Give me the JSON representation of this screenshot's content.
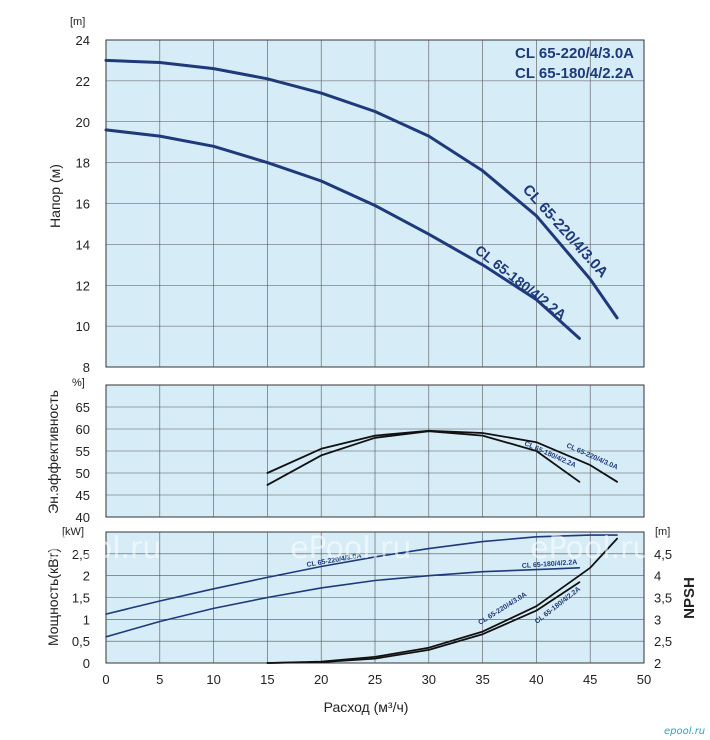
{
  "chart_data": [
    {
      "type": "line",
      "ylabel": "Напор (м)",
      "yunit": "[m]",
      "xlim": [
        0,
        50
      ],
      "ylim": [
        8,
        24
      ],
      "yticks": [
        8,
        10,
        12,
        14,
        16,
        18,
        20,
        22,
        24
      ],
      "grid": true,
      "legend": [
        "CL 65-220/4/3.0A",
        "CL 65-180/4/2.2A"
      ],
      "series": [
        {
          "name": "CL 65-220/4/3.0A",
          "x": [
            0,
            5,
            10,
            15,
            20,
            25,
            30,
            35,
            40,
            45,
            47.5
          ],
          "y": [
            23.0,
            22.9,
            22.6,
            22.1,
            21.4,
            20.5,
            19.3,
            17.6,
            15.4,
            12.3,
            10.4
          ]
        },
        {
          "name": "CL 65-180/4/2.2A",
          "x": [
            0,
            5,
            10,
            15,
            20,
            25,
            30,
            35,
            40,
            44
          ],
          "y": [
            19.6,
            19.3,
            18.8,
            18.0,
            17.1,
            15.9,
            14.5,
            13.0,
            11.3,
            9.4
          ]
        }
      ]
    },
    {
      "type": "line",
      "ylabel": "Эн.эффективность",
      "yunit": "%]",
      "xlim": [
        0,
        50
      ],
      "ylim": [
        40,
        70
      ],
      "yticks": [
        40,
        45,
        50,
        55,
        60,
        65
      ],
      "grid": true,
      "series": [
        {
          "name": "CL 65-220/4/3.0A",
          "x": [
            15,
            20,
            25,
            30,
            35,
            40,
            45,
            47.5
          ],
          "y": [
            50.0,
            55.5,
            58.5,
            59.6,
            59.1,
            57.0,
            51.8,
            48.0
          ]
        },
        {
          "name": "CL 65-180/4/2.2A",
          "x": [
            15,
            20,
            25,
            30,
            35,
            40,
            44
          ],
          "y": [
            47.3,
            54.0,
            58.0,
            59.5,
            58.5,
            55.0,
            48.0
          ]
        }
      ]
    },
    {
      "type": "line",
      "ylabel": "Мощность(кВт)",
      "yunit": "[kW]",
      "y2label": "NPSH",
      "y2unit": "[m]",
      "xlabel": "Расход (м³/ч)",
      "xlim": [
        0,
        50
      ],
      "xticks": [
        0,
        5,
        10,
        15,
        20,
        25,
        30,
        35,
        40,
        45,
        50
      ],
      "ylim": [
        0,
        3
      ],
      "yticks": [
        0,
        0.5,
        1,
        1.5,
        2,
        2.5
      ],
      "ytick_labels": [
        "0",
        "0,5",
        "1",
        "1,5",
        "2",
        "2,5"
      ],
      "y2lim": [
        2,
        5
      ],
      "y2ticks": [
        2,
        2.5,
        3,
        3.5,
        4,
        4.5
      ],
      "y2tick_labels": [
        "2",
        "2,5",
        "3",
        "3,5",
        "4",
        "4,5"
      ],
      "grid": true,
      "series": [
        {
          "name": "CL 65-220/4/3.0A",
          "axis": "power",
          "x": [
            0,
            5,
            10,
            15,
            20,
            25,
            30,
            35,
            40,
            45,
            47.5
          ],
          "y": [
            1.12,
            1.42,
            1.7,
            1.96,
            2.21,
            2.43,
            2.62,
            2.78,
            2.89,
            2.93,
            2.93
          ]
        },
        {
          "name": "CL 65-180/4/2.2A",
          "axis": "power",
          "x": [
            0,
            5,
            10,
            15,
            20,
            25,
            30,
            35,
            40,
            44
          ],
          "y": [
            0.6,
            0.95,
            1.25,
            1.5,
            1.72,
            1.89,
            2.0,
            2.09,
            2.14,
            2.18
          ]
        },
        {
          "name": "CL 65-220/4/3.0A",
          "axis": "npsh",
          "x": [
            15,
            20,
            25,
            30,
            35,
            40,
            45,
            47.5
          ],
          "y": [
            2.0,
            2.03,
            2.14,
            2.35,
            2.72,
            3.3,
            4.18,
            4.85
          ]
        },
        {
          "name": "CL 65-180/4/2.2A",
          "axis": "npsh",
          "x": [
            15,
            20,
            25,
            30,
            35,
            40,
            44
          ],
          "y": [
            2.0,
            2.02,
            2.1,
            2.3,
            2.66,
            3.2,
            3.85
          ]
        }
      ]
    }
  ],
  "watermarks": [
    "ePool.ru",
    "ePool.ru",
    "ePool.ru"
  ],
  "brand": "epool.ru",
  "colors": {
    "panel_bg": "#d6ecf7",
    "curve": "#1f3a7a",
    "efficiency": "#111111",
    "grid": "#555555"
  }
}
